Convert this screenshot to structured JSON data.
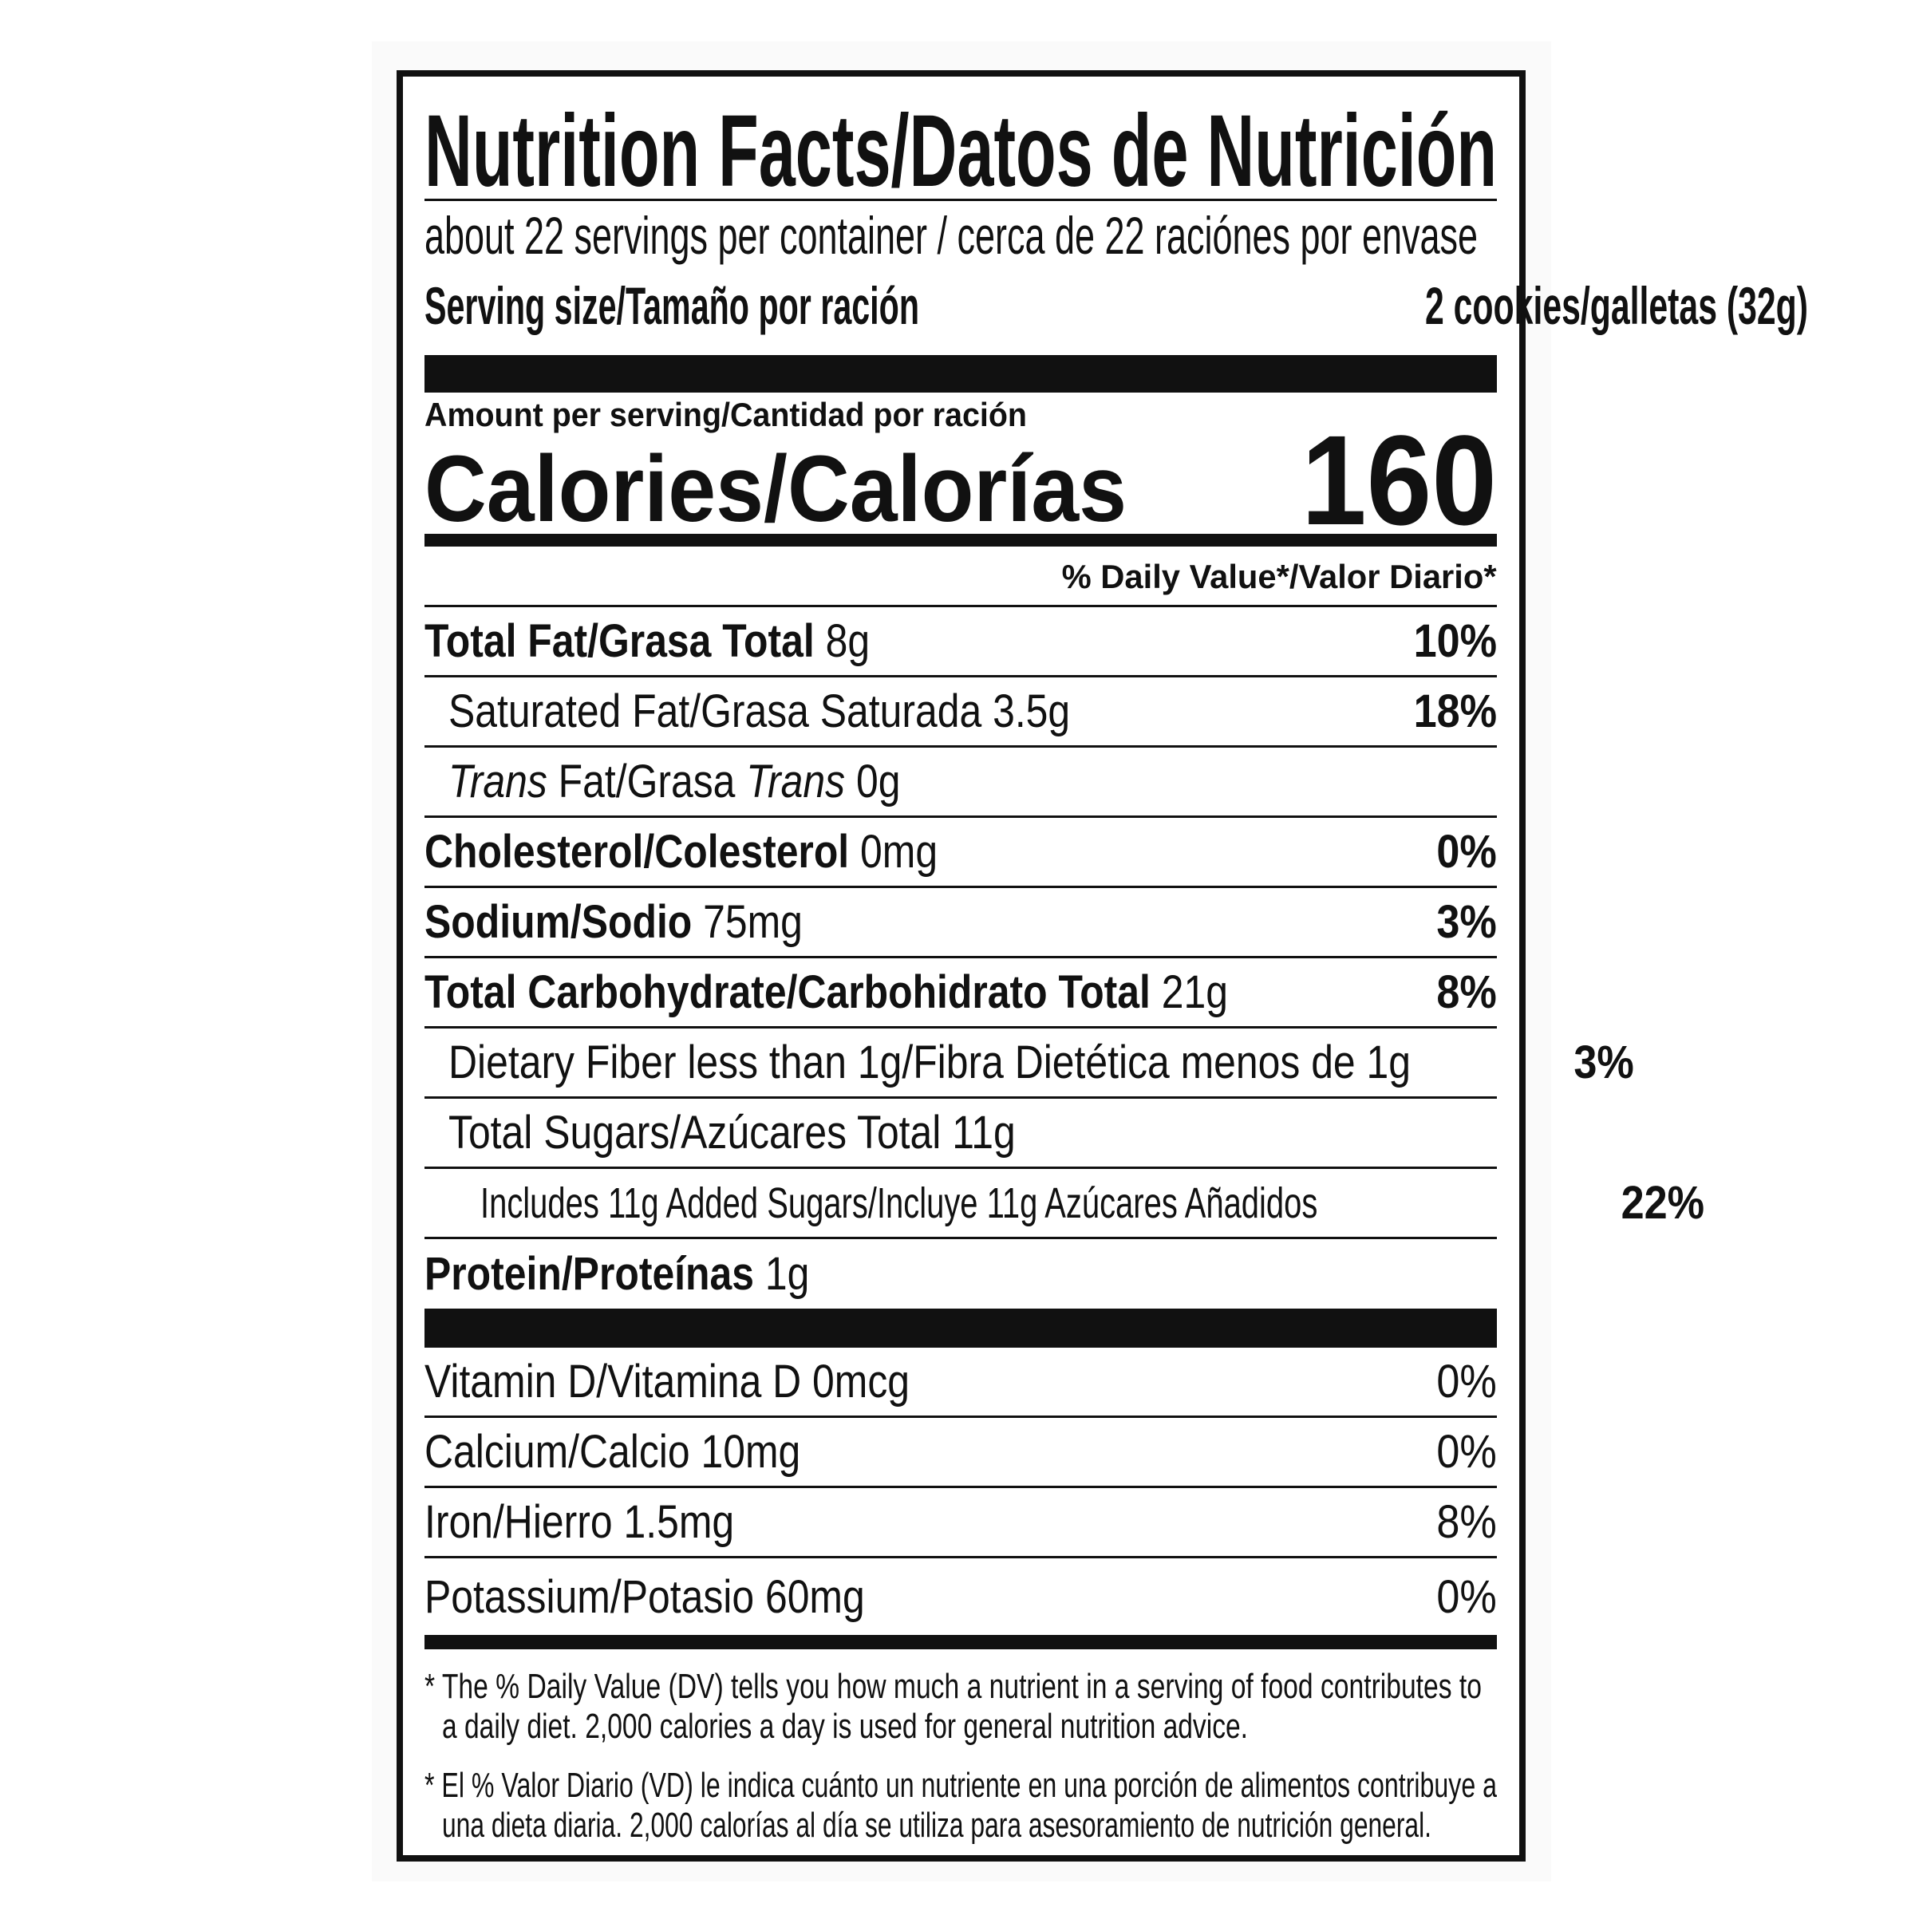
{
  "header": {
    "title": "Nutrition Facts/Datos de Nutrición",
    "servings": "about 22 servings per container / cerca de 22 raciónes por envase",
    "serving_size_label": "Serving size/Tamaño por ración",
    "serving_size_value": "2 cookies/galletas (32g)"
  },
  "calories": {
    "amount_label": "Amount per serving/Cantidad por ración",
    "label": "Calories/Calorías",
    "value": "160"
  },
  "dv_header": "% Daily Value*/Valor Diario*",
  "nutrients": [
    {
      "name": "Total Fat/Grasa Total",
      "amount": "8g",
      "dv": "10%"
    },
    {
      "name": "Saturated Fat/Grasa Saturada",
      "amount": "3.5g",
      "dv": "18%"
    },
    {
      "name_a": "Trans",
      "name_b": " Fat/Grasa ",
      "name_c": "Trans",
      "amount": "0g",
      "dv": ""
    },
    {
      "name": "Cholesterol/Colesterol",
      "amount": "0mg",
      "dv": "0%"
    },
    {
      "name": "Sodium/Sodio",
      "amount": "75mg",
      "dv": "3%"
    },
    {
      "name": "Total Carbohydrate/Carbohidrato Total",
      "amount": "21g",
      "dv": "8%"
    },
    {
      "name": "Dietary Fiber less than 1g/Fibra Dietética menos de 1g",
      "dv": "3%"
    },
    {
      "name": "Total Sugars/Azúcares Total 11g",
      "dv": ""
    },
    {
      "name": "Includes 11g Added Sugars/Incluye 11g Azúcares Añadidos",
      "dv": "22%"
    },
    {
      "name": "Protein/Proteínas",
      "amount": "1g"
    }
  ],
  "vitamins": [
    {
      "name": "Vitamin D/Vitamina D 0mcg",
      "dv": "0%"
    },
    {
      "name": "Calcium/Calcio 10mg",
      "dv": "0%"
    },
    {
      "name": "Iron/Hierro 1.5mg",
      "dv": "8%"
    },
    {
      "name": "Potassium/Potasio 60mg",
      "dv": "0%"
    }
  ],
  "footnotes": {
    "en_1": "* The % Daily Value (DV) tells you how much a nutrient in a serving of food contributes to",
    "en_2": "a daily diet. 2,000 calories a day is used for general nutrition advice.",
    "es_1": "* El % Valor Diario (VD) le indica cuánto un nutriente en una porción de alimentos contribuye a",
    "es_2": "una dieta diaria. 2,000 calorías al día se utiliza para asesoramiento de nutrición general."
  }
}
